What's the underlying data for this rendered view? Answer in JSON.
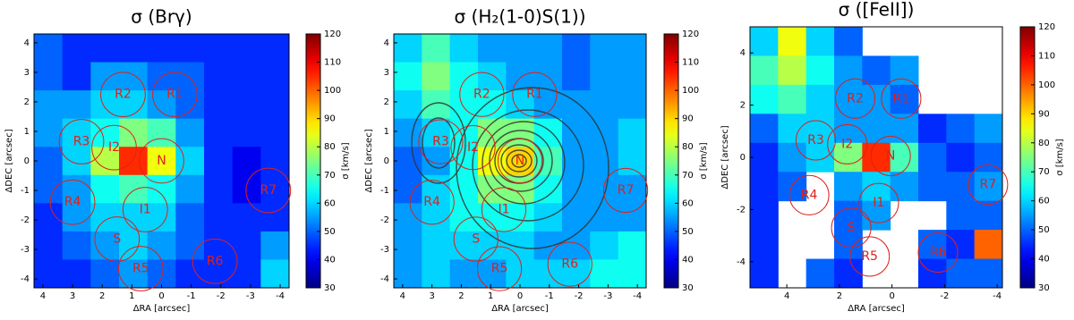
{
  "chart_data": [
    {
      "type": "heatmap",
      "title": "σ (Brγ)",
      "xlabel": "ΔRA [arcsec]",
      "ylabel": "ΔDEC [arcsec]",
      "xlim": [
        4.3,
        -4.3
      ],
      "ylim": [
        -4.3,
        4.3
      ],
      "xticks": [
        4,
        3,
        2,
        1,
        0,
        -1,
        -2,
        -3,
        -4
      ],
      "yticks": [
        -4,
        -3,
        -2,
        -1,
        0,
        1,
        2,
        3,
        4
      ],
      "values": [
        [
          50,
          45,
          45,
          45,
          45,
          45,
          45,
          45,
          45
        ],
        [
          50,
          45,
          55,
          55,
          50,
          50,
          45,
          45,
          45
        ],
        [
          55,
          55,
          60,
          60,
          55,
          50,
          45,
          45,
          45
        ],
        [
          55,
          60,
          65,
          75,
          70,
          55,
          45,
          45,
          45
        ],
        [
          50,
          60,
          80,
          105,
          85,
          60,
          45,
          40,
          45
        ],
        [
          50,
          55,
          65,
          70,
          65,
          55,
          45,
          40,
          45
        ],
        [
          45,
          55,
          60,
          60,
          60,
          50,
          45,
          45,
          45
        ],
        [
          45,
          50,
          55,
          60,
          55,
          50,
          45,
          45,
          55
        ],
        [
          45,
          45,
          50,
          55,
          50,
          45,
          45,
          45,
          60
        ]
      ],
      "clim": [
        30,
        120
      ],
      "cticks": [
        30,
        40,
        50,
        60,
        70,
        80,
        90,
        100,
        110,
        120
      ],
      "clabel": "σ [km/s]",
      "regions": [
        {
          "label": "R2",
          "x": 1.3,
          "y": 2.25,
          "r": 0.75
        },
        {
          "label": "R1",
          "x": -0.45,
          "y": 2.25,
          "r": 0.75
        },
        {
          "label": "R3",
          "x": 2.7,
          "y": 0.65,
          "r": 0.75
        },
        {
          "label": "I2",
          "x": 1.6,
          "y": 0.45,
          "r": 0.75
        },
        {
          "label": "N",
          "x": 0,
          "y": 0,
          "r": 0.75
        },
        {
          "label": "R4",
          "x": 3.0,
          "y": -1.4,
          "r": 0.75
        },
        {
          "label": "I1",
          "x": 0.55,
          "y": -1.65,
          "r": 0.75
        },
        {
          "label": "S",
          "x": 1.5,
          "y": -2.65,
          "r": 0.75
        },
        {
          "label": "R5",
          "x": 0.7,
          "y": -3.65,
          "r": 0.75
        },
        {
          "label": "R6",
          "x": -1.8,
          "y": -3.4,
          "r": 0.75
        },
        {
          "label": "R7",
          "x": -3.6,
          "y": -1.0,
          "r": 0.75
        }
      ]
    },
    {
      "type": "heatmap",
      "title": "σ (H₂(1-0)S(1))",
      "xlabel": "ΔRA [arcsec]",
      "ylabel": "ΔDEC [arcsec]",
      "xlim": [
        4.3,
        -4.3
      ],
      "ylim": [
        -4.3,
        4.3
      ],
      "xticks": [
        4,
        3,
        2,
        1,
        0,
        -1,
        -2,
        -3,
        -4
      ],
      "yticks": [
        -4,
        -3,
        -2,
        -1,
        0,
        1,
        2,
        3,
        4
      ],
      "values": [
        [
          60,
          70,
          60,
          55,
          55,
          55,
          50,
          55,
          55
        ],
        [
          65,
          75,
          65,
          60,
          55,
          55,
          50,
          55,
          55
        ],
        [
          60,
          70,
          65,
          65,
          60,
          55,
          55,
          55,
          55
        ],
        [
          55,
          60,
          65,
          75,
          75,
          65,
          55,
          55,
          60
        ],
        [
          50,
          55,
          65,
          85,
          90,
          70,
          55,
          55,
          60
        ],
        [
          50,
          60,
          65,
          75,
          75,
          65,
          55,
          55,
          55
        ],
        [
          55,
          60,
          65,
          65,
          65,
          60,
          55,
          55,
          55
        ],
        [
          55,
          60,
          60,
          60,
          60,
          55,
          55,
          60,
          65
        ],
        [
          55,
          60,
          55,
          55,
          60,
          60,
          60,
          65,
          65
        ]
      ],
      "clim": [
        30,
        120
      ],
      "cticks": [
        30,
        40,
        50,
        60,
        70,
        80,
        90,
        100,
        110,
        120
      ],
      "clabel": "σ [km/s]",
      "regions": [
        {
          "label": "R2",
          "x": 1.3,
          "y": 2.25,
          "r": 0.75
        },
        {
          "label": "R1",
          "x": -0.5,
          "y": 2.25,
          "r": 0.75
        },
        {
          "label": "R3",
          "x": 2.7,
          "y": 0.65,
          "r": 0.75
        },
        {
          "label": "I2",
          "x": 1.6,
          "y": 0.45,
          "r": 0.75
        },
        {
          "label": "N",
          "x": 0,
          "y": 0,
          "r": 0.75
        },
        {
          "label": "R4",
          "x": 3.0,
          "y": -1.4,
          "r": 0.75
        },
        {
          "label": "I1",
          "x": 0.55,
          "y": -1.65,
          "r": 0.75
        },
        {
          "label": "S",
          "x": 1.5,
          "y": -2.65,
          "r": 0.75
        },
        {
          "label": "R5",
          "x": 0.7,
          "y": -3.65,
          "r": 0.75
        },
        {
          "label": "R6",
          "x": -1.7,
          "y": -3.5,
          "r": 0.75
        },
        {
          "label": "R7",
          "x": -3.6,
          "y": -1.0,
          "r": 0.75
        }
      ]
    },
    {
      "type": "heatmap",
      "title": "σ ([FeII])",
      "xlabel": "ΔRA [arcsec]",
      "ylabel": "ΔDEC [arcsec]",
      "xlim": [
        5.4,
        -4.2
      ],
      "ylim": [
        -5,
        5
      ],
      "xticks": [
        4,
        2,
        0,
        -2,
        -4
      ],
      "yticks": [
        -4,
        -2,
        0,
        2,
        4
      ],
      "values": [
        [
          60,
          85,
          60,
          50,
          null,
          null,
          null,
          null,
          null
        ],
        [
          70,
          80,
          65,
          55,
          50,
          55,
          null,
          null,
          null
        ],
        [
          65,
          70,
          60,
          55,
          55,
          50,
          null,
          null,
          null
        ],
        [
          50,
          60,
          60,
          55,
          55,
          55,
          45,
          50,
          55
        ],
        [
          45,
          55,
          60,
          75,
          105,
          70,
          50,
          45,
          50
        ],
        [
          45,
          50,
          null,
          55,
          60,
          55,
          50,
          50,
          55
        ],
        [
          45,
          null,
          null,
          50,
          55,
          null,
          null,
          50,
          50
        ],
        [
          45,
          null,
          null,
          50,
          null,
          null,
          50,
          45,
          100
        ],
        [
          45,
          null,
          50,
          45,
          null,
          null,
          45,
          50,
          50
        ]
      ],
      "clim": [
        30,
        120
      ],
      "cticks": [
        30,
        40,
        50,
        60,
        70,
        80,
        90,
        100,
        110,
        120
      ],
      "clabel": "σ [km/s]",
      "regions": [
        {
          "label": "R2",
          "x": 1.4,
          "y": 2.25,
          "r": 0.75
        },
        {
          "label": "R1",
          "x": -0.35,
          "y": 2.25,
          "r": 0.75
        },
        {
          "label": "R3",
          "x": 2.9,
          "y": 0.65,
          "r": 0.75
        },
        {
          "label": "I2",
          "x": 1.7,
          "y": 0.5,
          "r": 0.75
        },
        {
          "label": "N",
          "x": 0.05,
          "y": 0.05,
          "r": 0.75
        },
        {
          "label": "R4",
          "x": 3.15,
          "y": -1.45,
          "r": 0.75
        },
        {
          "label": "I1",
          "x": 0.5,
          "y": -1.75,
          "r": 0.75
        },
        {
          "label": "S",
          "x": 1.55,
          "y": -2.7,
          "r": 0.75
        },
        {
          "label": "R5",
          "x": 0.85,
          "y": -3.8,
          "r": 0.75
        },
        {
          "label": "R6",
          "x": -1.75,
          "y": -3.65,
          "r": 0.75
        },
        {
          "label": "R7",
          "x": -3.65,
          "y": -1.05,
          "r": 0.75
        }
      ]
    }
  ]
}
